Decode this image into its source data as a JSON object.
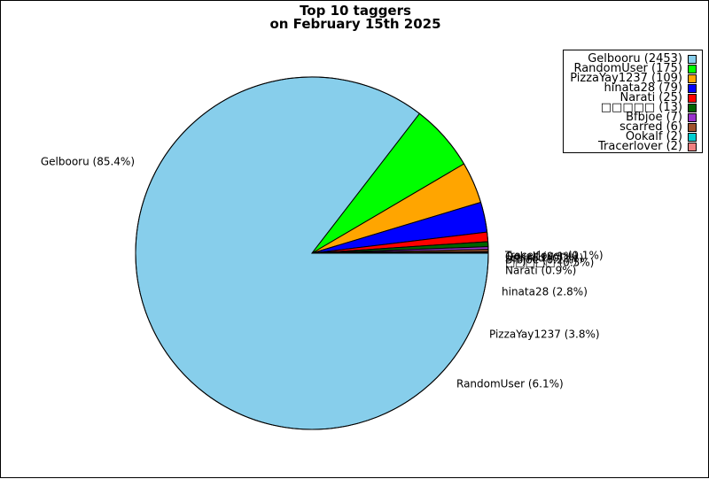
{
  "title": {
    "line1": "Top 10 taggers",
    "line2": "on February 15th 2025"
  },
  "chart_data": {
    "type": "pie",
    "title": "Top 10 taggers on February 15th 2025",
    "legend_position": "top-right",
    "start_angle": 0,
    "direction": "clockwise",
    "slices": [
      {
        "label": "Gelbooru",
        "value": 2453,
        "percent": "85.4%",
        "color": "#87CEEB",
        "legend": "Gelbooru (2453)",
        "pie_label": "Gelbooru (85.4%)"
      },
      {
        "label": "RandomUser",
        "value": 175,
        "percent": "6.1%",
        "color": "#00FF00",
        "legend": "RandomUser (175)",
        "pie_label": "RandomUser (6.1%)"
      },
      {
        "label": "PizzaYay1237",
        "value": 109,
        "percent": "3.8%",
        "color": "#FFA500",
        "legend": "PizzaYay1237 (109)",
        "pie_label": "PizzaYay1237 (3.8%)"
      },
      {
        "label": "hinata28",
        "value": 79,
        "percent": "2.8%",
        "color": "#0000FF",
        "legend": "hinata28 (79)",
        "pie_label": "hinata28 (2.8%)"
      },
      {
        "label": "Narati",
        "value": 25,
        "percent": "0.9%",
        "color": "#FF0000",
        "legend": "Narati (25)",
        "pie_label": "Narati (0.9%)"
      },
      {
        "label": "□□□□□",
        "value": 13,
        "percent": "0.5%",
        "color": "#006400",
        "legend": "□□□□□ (13)",
        "pie_label": "□□□□□ (0.5%)"
      },
      {
        "label": "Bfbjoe",
        "value": 7,
        "percent": "0.2%",
        "color": "#9932CC",
        "legend": "Bfbjoe (7)",
        "pie_label": "Bfbjoe (0.2%)"
      },
      {
        "label": "scarred",
        "value": 6,
        "percent": "0.2%",
        "color": "#A0522D",
        "legend": "scarred (6)",
        "pie_label": "scarred (0.2%)"
      },
      {
        "label": "Ookalf",
        "value": 2,
        "percent": "0.1%",
        "color": "#00CED1",
        "legend": "Ookalf (2)",
        "pie_label": "Ookalf (0.1%)"
      },
      {
        "label": "Tracerlover",
        "value": 2,
        "percent": "0.1%",
        "color": "#F08080",
        "legend": "Tracerlover (2)",
        "pie_label": "Tracerlover (0.1%)"
      }
    ]
  }
}
